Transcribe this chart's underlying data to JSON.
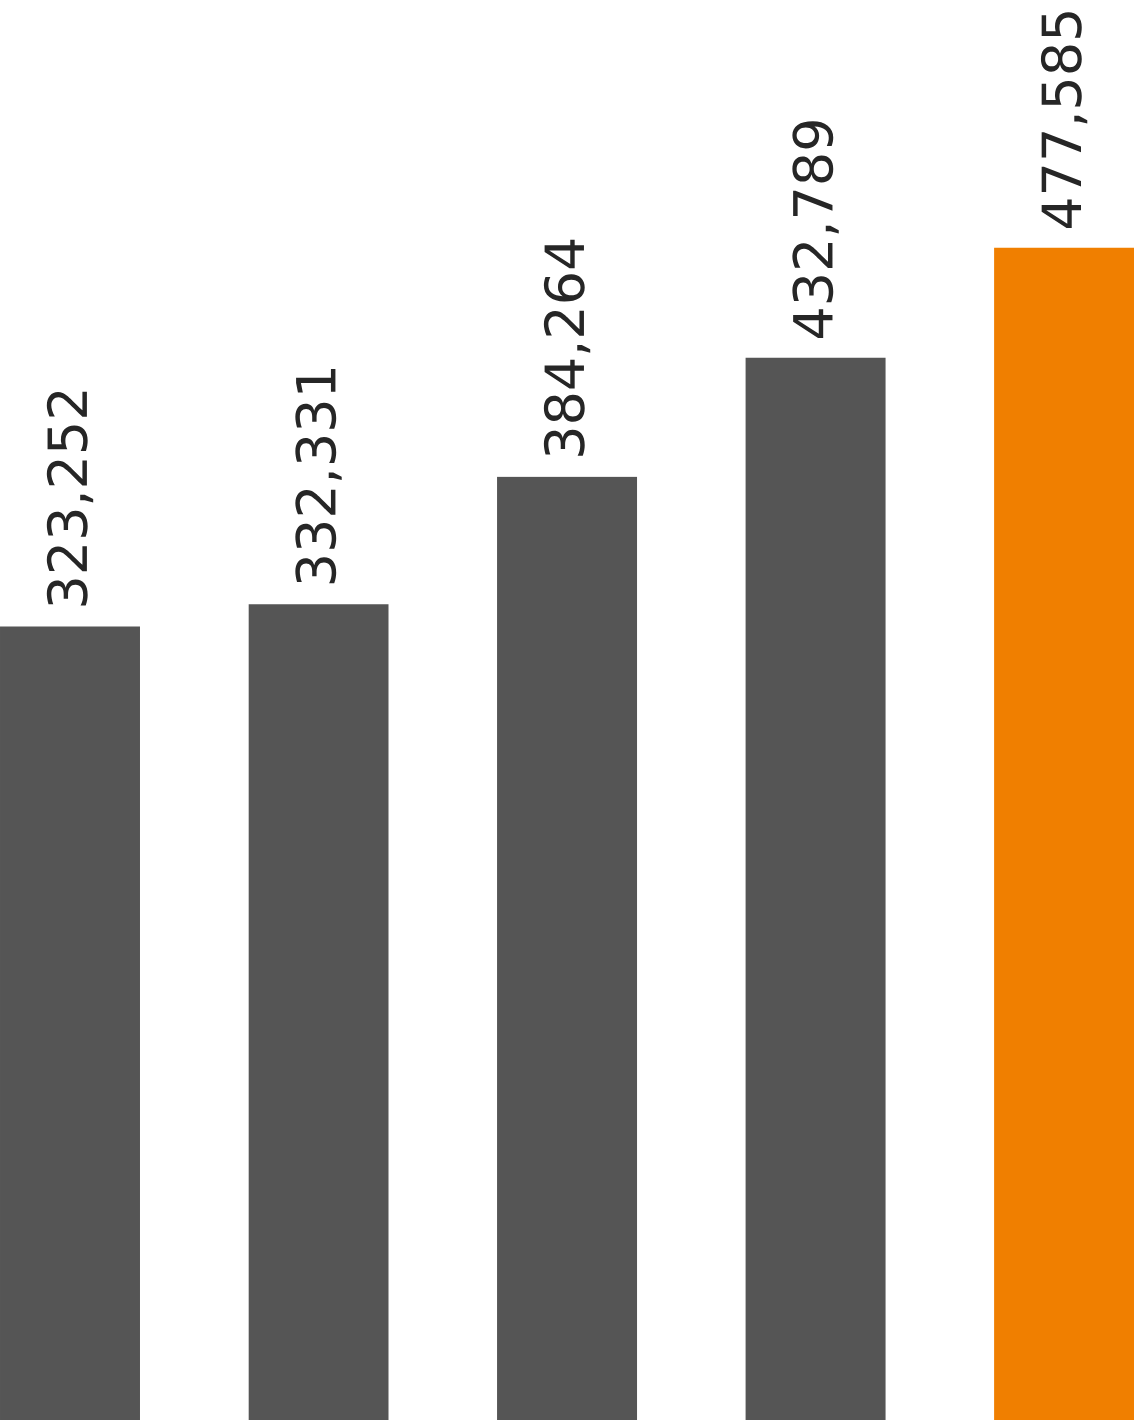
{
  "chart_data": {
    "type": "bar",
    "categories": [
      null,
      null,
      null,
      null,
      null
    ],
    "values": [
      323252,
      332331,
      384264,
      432789,
      477585
    ],
    "colors": [
      "#555555",
      "#555555",
      "#555555",
      "#555555",
      "#f07f00"
    ],
    "value_labels": [
      "323,252",
      "332,331",
      "384,264",
      "432,789",
      "477,585"
    ]
  }
}
